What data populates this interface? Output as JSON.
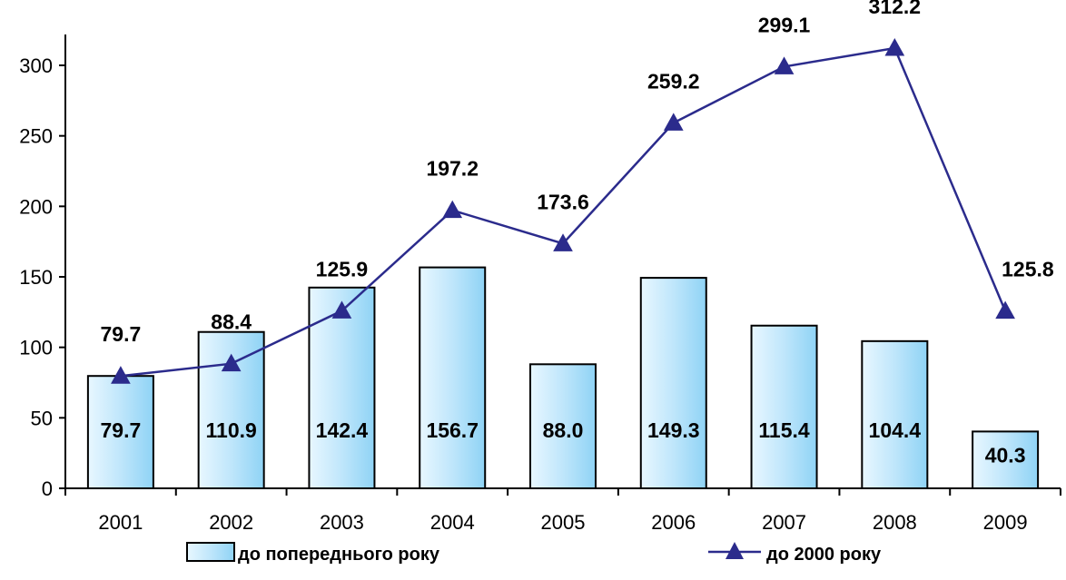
{
  "chart_data": {
    "type": "bar",
    "categories": [
      "2001",
      "2002",
      "2003",
      "2004",
      "2005",
      "2006",
      "2007",
      "2008",
      "2009"
    ],
    "series": [
      {
        "name": "до попереднього року",
        "type": "bar",
        "values": [
          79.7,
          110.9,
          142.4,
          156.7,
          88.0,
          149.3,
          115.4,
          104.4,
          40.3
        ],
        "labels": [
          "79.7",
          "110.9",
          "142.4",
          "156.7",
          "88.0",
          "149.3",
          "115.4",
          "104.4",
          "40.3"
        ]
      },
      {
        "name": "до 2000 року",
        "type": "line",
        "marker": "triangle",
        "values": [
          79.7,
          88.4,
          125.9,
          197.2,
          173.6,
          259.2,
          299.1,
          312.2,
          125.8
        ],
        "labels": [
          "79.7",
          "88.4",
          "125.9",
          "197.2",
          "173.6",
          "259.2",
          "299.1",
          "312.2",
          "125.8"
        ]
      }
    ],
    "yticks": [
      "0",
      "50",
      "100",
      "150",
      "200",
      "250",
      "300"
    ],
    "ylim": [
      0,
      335
    ],
    "grid": false,
    "legend_position": "bottom",
    "colors": {
      "bar_light": "#e8f7ff",
      "bar_mid": "#bfe6fb",
      "bar_dark": "#8fd3f5",
      "line": "#2b2b8c",
      "axis": "#000000"
    }
  }
}
